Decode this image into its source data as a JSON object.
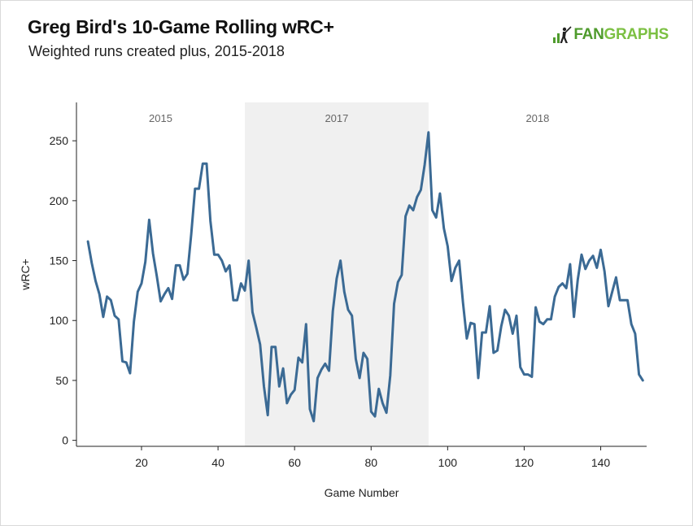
{
  "header": {
    "title": "Greg Bird's 10-Game Rolling wRC+",
    "subtitle": "Weighted runs created plus, 2015-2018",
    "logo_text": "FANGRAPHS",
    "logo_fan": "FAN",
    "logo_graphs": "GRAPHS"
  },
  "colors": {
    "line": "#3b6a94",
    "shade": "#f0f0f0",
    "logo_dark": "#4f9b2d",
    "logo_light": "#7cc043"
  },
  "chart_data": {
    "type": "line",
    "title": "Greg Bird's 10-Game Rolling wRC+",
    "subtitle": "Weighted runs created plus, 2015-2018",
    "xlabel": "Game Number",
    "ylabel": "wRC+",
    "xlim": [
      3,
      152
    ],
    "ylim": [
      -5,
      282
    ],
    "x_ticks": [
      20,
      40,
      60,
      80,
      100,
      120,
      140
    ],
    "y_ticks": [
      0,
      50,
      100,
      150,
      200,
      250
    ],
    "grid": false,
    "periods": [
      {
        "label": "2015",
        "start": 3,
        "end": 47,
        "shaded": false
      },
      {
        "label": "2017",
        "start": 47,
        "end": 95,
        "shaded": true
      },
      {
        "label": "2018",
        "start": 95,
        "end": 152,
        "shaded": false
      }
    ],
    "series": [
      {
        "x": [
          6,
          7,
          8,
          9,
          10,
          11,
          12,
          13,
          14,
          15,
          16,
          17,
          18,
          19,
          20,
          21,
          22,
          23,
          24,
          25,
          26,
          27,
          28,
          29,
          30,
          31,
          32,
          33,
          34,
          35,
          36,
          37,
          38,
          39,
          40,
          41,
          42,
          43,
          44,
          45,
          46,
          47,
          48,
          49,
          50,
          51,
          52,
          53,
          54,
          55,
          56,
          57,
          58,
          59,
          60,
          61,
          62,
          63,
          64,
          65,
          66,
          67,
          68,
          69,
          70,
          71,
          72,
          73,
          74,
          75,
          76,
          77,
          78,
          79,
          80,
          81,
          82,
          83,
          84,
          85,
          86,
          87,
          88,
          89,
          90,
          91,
          92,
          93,
          94,
          95,
          96,
          97,
          98,
          99,
          100,
          101,
          102,
          103,
          104,
          105,
          106,
          107,
          108,
          109,
          110,
          111,
          112,
          113,
          114,
          115,
          116,
          117,
          118,
          119,
          120,
          121,
          122,
          123,
          124,
          125,
          126,
          127,
          128,
          129,
          130,
          131,
          132,
          133,
          134,
          135,
          136,
          137,
          138,
          139,
          140,
          141,
          142,
          143,
          144,
          145,
          146,
          147,
          148,
          149,
          150,
          151
        ],
        "y": [
          166,
          148,
          133,
          122,
          103,
          120,
          117,
          104,
          101,
          66,
          65,
          56,
          99,
          124,
          131,
          149,
          184,
          156,
          137,
          116,
          122,
          127,
          118,
          146,
          146,
          134,
          139,
          172,
          210,
          210,
          231,
          231,
          183,
          155,
          155,
          150,
          141,
          146,
          117,
          117,
          131,
          125,
          150,
          107,
          94,
          80,
          45,
          21,
          78,
          78,
          45,
          60,
          31,
          38,
          42,
          69,
          65,
          97,
          26,
          16,
          52,
          59,
          64,
          58,
          108,
          135,
          150,
          124,
          109,
          104,
          68,
          52,
          73,
          68,
          24,
          20,
          43,
          31,
          23,
          54,
          114,
          132,
          138,
          187,
          196,
          192,
          203,
          209,
          230,
          257,
          192,
          186,
          206,
          177,
          162,
          133,
          144,
          150,
          115,
          85,
          98,
          97,
          52,
          90,
          90,
          112,
          73,
          75,
          95,
          109,
          104,
          89,
          104,
          61,
          55,
          55,
          53,
          111,
          99,
          97,
          101,
          101,
          120,
          128,
          131,
          127,
          147,
          103,
          134,
          155,
          143,
          150,
          154,
          144,
          159,
          141,
          112,
          124,
          136,
          117,
          117,
          117,
          97,
          89,
          55,
          50
        ]
      }
    ]
  }
}
